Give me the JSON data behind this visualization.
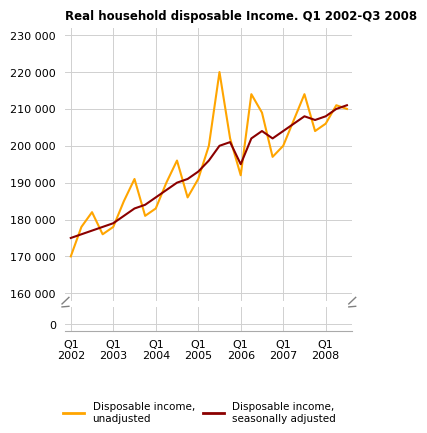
{
  "title": "Real household disposable Income. Q1 2002-Q3 2008",
  "unadjusted": [
    170000,
    178000,
    182000,
    176000,
    178000,
    185000,
    191000,
    181000,
    183000,
    190000,
    196000,
    186000,
    191000,
    200000,
    220000,
    202000,
    192000,
    214000,
    209000,
    197000,
    200000,
    207000,
    214000,
    204000,
    206000,
    211000,
    210000
  ],
  "adjusted": [
    175000,
    176000,
    177000,
    178000,
    179000,
    181000,
    183000,
    184000,
    186000,
    188000,
    190000,
    191000,
    193000,
    196000,
    200000,
    201000,
    195000,
    202000,
    204000,
    202000,
    204000,
    206000,
    208000,
    207000,
    208000,
    210000,
    211000
  ],
  "unadjusted_color": "#FFA500",
  "adjusted_color": "#8B0000",
  "yticks_main": [
    160000,
    170000,
    180000,
    190000,
    200000,
    210000,
    220000,
    230000
  ],
  "ylim_main_bottom": 158000,
  "ylim_main_top": 232000,
  "ytick_bottom": [
    0
  ],
  "ylim_bottom_bottom": -2000,
  "ylim_bottom_top": 5000,
  "xtick_positions": [
    0,
    4,
    8,
    12,
    16,
    20,
    24
  ],
  "xtick_labels": [
    "Q1\n2002",
    "Q1\n2003",
    "Q1\n2004",
    "Q1\n2005",
    "Q1\n2006",
    "Q1\n2007",
    "Q1\n2008"
  ],
  "legend_unadjusted": "Disposable income,\nunadjusted",
  "legend_adjusted": "Disposable income,\nseasonally adjusted",
  "linewidth": 1.5,
  "n_quarters": 27
}
